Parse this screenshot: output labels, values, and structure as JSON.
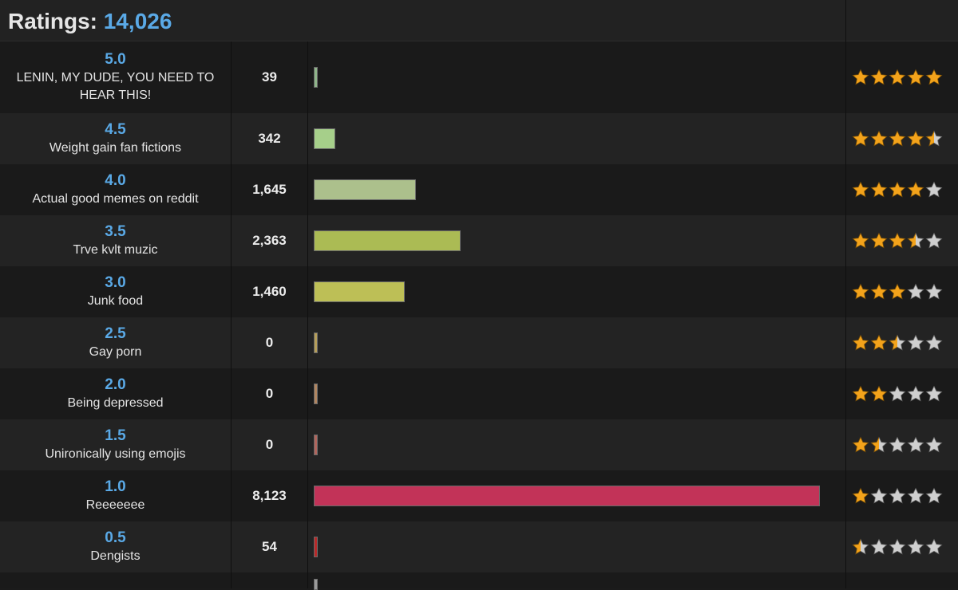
{
  "header": {
    "title_prefix": "Ratings:",
    "total": "14,026"
  },
  "colors": {
    "accent": "#5aa9e6",
    "star_fill": "#f3a31b",
    "star_empty": "#cfcfcf"
  },
  "rows": [
    {
      "rating": "5.0",
      "label": "LENIN, MY DUDE, YOU NEED TO HEAR THIS!",
      "count": "39",
      "share": 0.0048,
      "stars": 5.0,
      "bar_color": "#8fb58a"
    },
    {
      "rating": "4.5",
      "label": "Weight gain fan fictions",
      "count": "342",
      "share": 0.042,
      "stars": 4.5,
      "bar_color": "#a6cf8a"
    },
    {
      "rating": "4.0",
      "label": "Actual good memes on reddit",
      "count": "1,645",
      "share": 0.2025,
      "stars": 4.0,
      "bar_color": "#acc08c"
    },
    {
      "rating": "3.5",
      "label": "Trve kvlt muzic",
      "count": "2,363",
      "share": 0.291,
      "stars": 3.5,
      "bar_color": "#abbb54"
    },
    {
      "rating": "3.0",
      "label": "Junk food",
      "count": "1,460",
      "share": 0.1797,
      "stars": 3.0,
      "bar_color": "#bdbf56"
    },
    {
      "rating": "2.5",
      "label": "Gay porn",
      "count": "0",
      "share": 0,
      "stars": 2.5,
      "bar_color": "#b59e5a"
    },
    {
      "rating": "2.0",
      "label": "Being depressed",
      "count": "0",
      "share": 0,
      "stars": 2.0,
      "bar_color": "#b08560"
    },
    {
      "rating": "1.5",
      "label": "Unironically using emojis",
      "count": "0",
      "share": 0,
      "stars": 1.5,
      "bar_color": "#b0665d"
    },
    {
      "rating": "1.0",
      "label": "Reeeeeee",
      "count": "8,123",
      "share": 1.0,
      "stars": 1.0,
      "bar_color": "#c23358"
    },
    {
      "rating": "0.5",
      "label": "Dengists",
      "count": "54",
      "share": 0.0066,
      "stars": 0.5,
      "bar_color": "#b82a2a"
    }
  ]
}
